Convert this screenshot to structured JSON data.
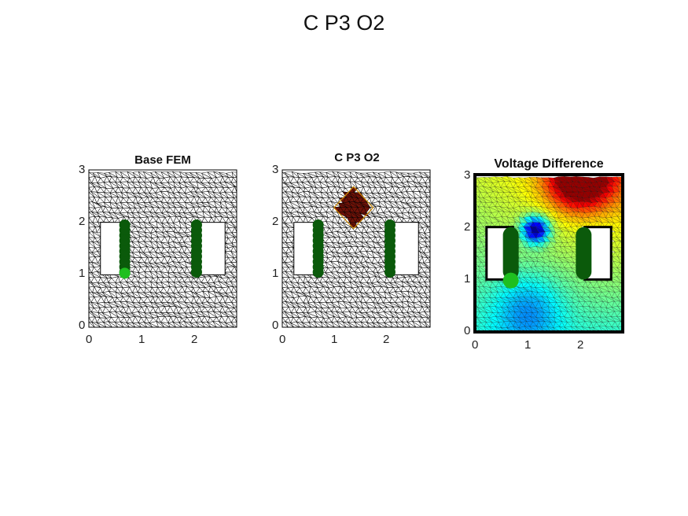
{
  "figure": {
    "title": "C P3 O2",
    "panels": [
      {
        "title": "Base FEM",
        "x_ticks": [
          "0",
          "1",
          "2"
        ],
        "y_ticks": [
          "0",
          "1",
          "2",
          "3"
        ],
        "kind": "mesh"
      },
      {
        "title": "C P3 O2",
        "x_ticks": [
          "0",
          "1",
          "2"
        ],
        "y_ticks": [
          "0",
          "1",
          "2",
          "3"
        ],
        "kind": "mesh-with-inclusion"
      },
      {
        "title": "Voltage Difference",
        "x_ticks": [
          "0",
          "1",
          "2"
        ],
        "y_ticks": [
          "0",
          "1",
          "2",
          "3"
        ],
        "kind": "colormap"
      }
    ]
  },
  "colors": {
    "mesh_line": "#000000",
    "electrode_dark": "#0b5a0b",
    "electrode_light": "#1fbf1f",
    "inclusion": "#6e1208"
  }
}
